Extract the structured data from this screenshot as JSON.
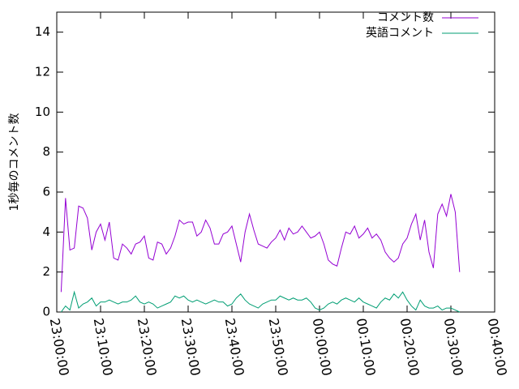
{
  "chart_data": {
    "type": "line",
    "ylabel": "1秒毎のコメント数",
    "x": [
      1,
      2,
      3,
      4,
      5,
      6,
      7,
      8,
      9,
      10,
      11,
      12,
      13,
      14,
      15,
      16,
      17,
      18,
      19,
      20,
      21,
      22,
      23,
      24,
      25,
      26,
      27,
      28,
      29,
      30,
      31,
      32,
      33,
      34,
      35,
      36,
      37,
      38,
      39,
      40,
      41,
      42,
      43,
      44,
      45,
      46,
      47,
      48,
      49,
      50,
      51,
      52,
      53,
      54,
      55,
      56,
      57,
      58,
      59,
      60,
      61,
      62,
      63,
      64,
      65,
      66,
      67,
      68,
      69,
      70,
      71,
      72,
      73,
      74,
      75,
      76,
      77,
      78,
      79,
      80,
      81,
      82,
      83,
      84,
      85,
      86,
      87,
      88,
      89,
      90,
      91,
      92
    ],
    "series": [
      {
        "name": "コメント数",
        "color": "#9400d3",
        "values": [
          1.0,
          5.7,
          3.1,
          3.2,
          5.3,
          5.2,
          4.7,
          3.1,
          4.0,
          4.4,
          3.6,
          4.5,
          2.7,
          2.6,
          3.4,
          3.2,
          2.9,
          3.4,
          3.5,
          3.8,
          2.7,
          2.6,
          3.5,
          3.4,
          2.9,
          3.2,
          3.8,
          4.6,
          4.4,
          4.5,
          4.5,
          3.8,
          4.0,
          4.6,
          4.2,
          3.4,
          3.4,
          3.9,
          4.0,
          4.3,
          3.4,
          2.5,
          4.0,
          4.9,
          4.1,
          3.4,
          3.3,
          3.2,
          3.5,
          3.7,
          4.1,
          3.6,
          4.2,
          3.9,
          4.0,
          4.3,
          4.0,
          3.7,
          3.8,
          4.0,
          3.4,
          2.6,
          2.4,
          2.3,
          3.2,
          4.0,
          3.9,
          4.3,
          3.7,
          3.9,
          4.2,
          3.7,
          3.9,
          3.6,
          3.0,
          2.7,
          2.5,
          2.7,
          3.4,
          3.7,
          4.4,
          4.9,
          3.6,
          4.6,
          3.0,
          2.2,
          4.9,
          5.4,
          4.8,
          5.9,
          5.0,
          2.0
        ]
      },
      {
        "name": "英語コメント",
        "color": "#009e73",
        "values": [
          0.0,
          0.3,
          0.1,
          1.0,
          0.2,
          0.4,
          0.5,
          0.7,
          0.3,
          0.5,
          0.5,
          0.6,
          0.5,
          0.4,
          0.5,
          0.5,
          0.6,
          0.8,
          0.5,
          0.4,
          0.5,
          0.4,
          0.2,
          0.3,
          0.4,
          0.5,
          0.8,
          0.7,
          0.8,
          0.6,
          0.5,
          0.6,
          0.5,
          0.4,
          0.5,
          0.6,
          0.5,
          0.5,
          0.3,
          0.4,
          0.7,
          0.9,
          0.6,
          0.4,
          0.3,
          0.2,
          0.4,
          0.5,
          0.6,
          0.6,
          0.8,
          0.7,
          0.6,
          0.7,
          0.6,
          0.6,
          0.7,
          0.5,
          0.2,
          0.1,
          0.2,
          0.4,
          0.5,
          0.4,
          0.6,
          0.7,
          0.6,
          0.5,
          0.7,
          0.5,
          0.4,
          0.3,
          0.2,
          0.5,
          0.7,
          0.6,
          0.9,
          0.7,
          1.0,
          0.6,
          0.3,
          0.1,
          0.6,
          0.3,
          0.2,
          0.2,
          0.3,
          0.1,
          0.2,
          0.2,
          0.1,
          0.0
        ]
      }
    ],
    "xlim": [
      0,
      100
    ],
    "xticks": [
      {
        "value": 0,
        "label": "23:00:00"
      },
      {
        "value": 10,
        "label": "23:10:00"
      },
      {
        "value": 20,
        "label": "23:20:00"
      },
      {
        "value": 30,
        "label": "23:30:00"
      },
      {
        "value": 40,
        "label": "23:40:00"
      },
      {
        "value": 50,
        "label": "23:50:00"
      },
      {
        "value": 60,
        "label": "00:00:00"
      },
      {
        "value": 70,
        "label": "00:10:00"
      },
      {
        "value": 80,
        "label": "00:20:00"
      },
      {
        "value": 90,
        "label": "00:30:00"
      },
      {
        "value": 100,
        "label": "00:40:00"
      }
    ],
    "ylim": [
      0,
      15
    ],
    "yticks": [
      0,
      2,
      4,
      6,
      8,
      10,
      12,
      14
    ],
    "legend": "top-right"
  }
}
